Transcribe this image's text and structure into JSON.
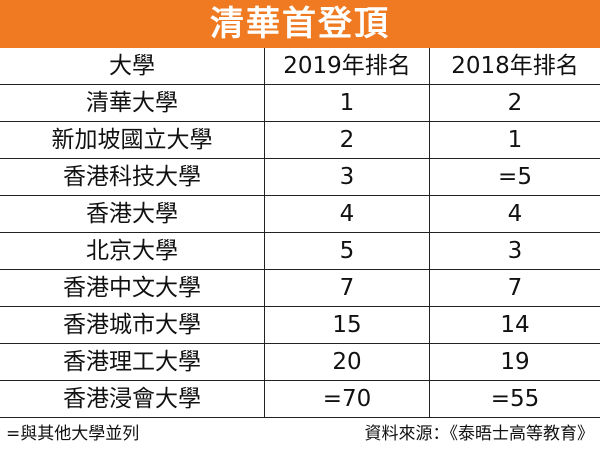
{
  "header": {
    "title": "清華首登頂"
  },
  "table": {
    "columns": [
      "大學",
      "2019年排名",
      "2018年排名"
    ],
    "rows": [
      [
        "清華大學",
        "1",
        "2"
      ],
      [
        "新加坡國立大學",
        "2",
        "1"
      ],
      [
        "香港科技大學",
        "3",
        "=5"
      ],
      [
        "香港大學",
        "4",
        "4"
      ],
      [
        "北京大學",
        "5",
        "3"
      ],
      [
        "香港中文大學",
        "7",
        "7"
      ],
      [
        "香港城市大學",
        "15",
        "14"
      ],
      [
        "香港理工大學",
        "20",
        "19"
      ],
      [
        "香港浸會大學",
        "=70",
        "=55"
      ]
    ]
  },
  "footer": {
    "note": "=與其他大學並列",
    "source": "資料來源：《泰晤士高等教育》"
  }
}
